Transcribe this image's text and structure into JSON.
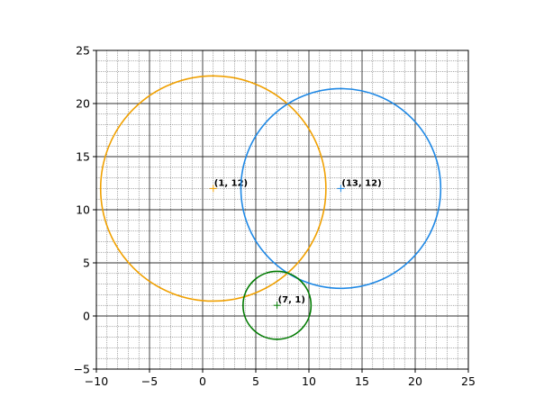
{
  "chart_data": {
    "type": "scatter",
    "title": "",
    "xlabel": "",
    "ylabel": "",
    "xlim": [
      -10,
      25
    ],
    "ylim": [
      -5,
      25
    ],
    "xticks": [
      -10,
      -5,
      0,
      5,
      10,
      15,
      20,
      25
    ],
    "yticks": [
      -5,
      0,
      5,
      10,
      15,
      20,
      25
    ],
    "xtick_labels": [
      "−10",
      "−5",
      "0",
      "5",
      "10",
      "15",
      "20",
      "25"
    ],
    "ytick_labels": [
      "−5",
      "0",
      "5",
      "10",
      "15",
      "20",
      "25"
    ],
    "grid": {
      "major": true,
      "minor": true,
      "minor_step": 1
    },
    "circles": [
      {
        "center": [
          1,
          12
        ],
        "radius": 10.6,
        "color": "#f0a000",
        "label": "(1, 12)"
      },
      {
        "center": [
          13,
          12
        ],
        "radius": 9.4,
        "color": "#1e88e5",
        "label": "(13, 12)"
      },
      {
        "center": [
          7,
          1
        ],
        "radius": 3.2,
        "color": "#007a00",
        "label": "(7, 1)"
      }
    ]
  }
}
